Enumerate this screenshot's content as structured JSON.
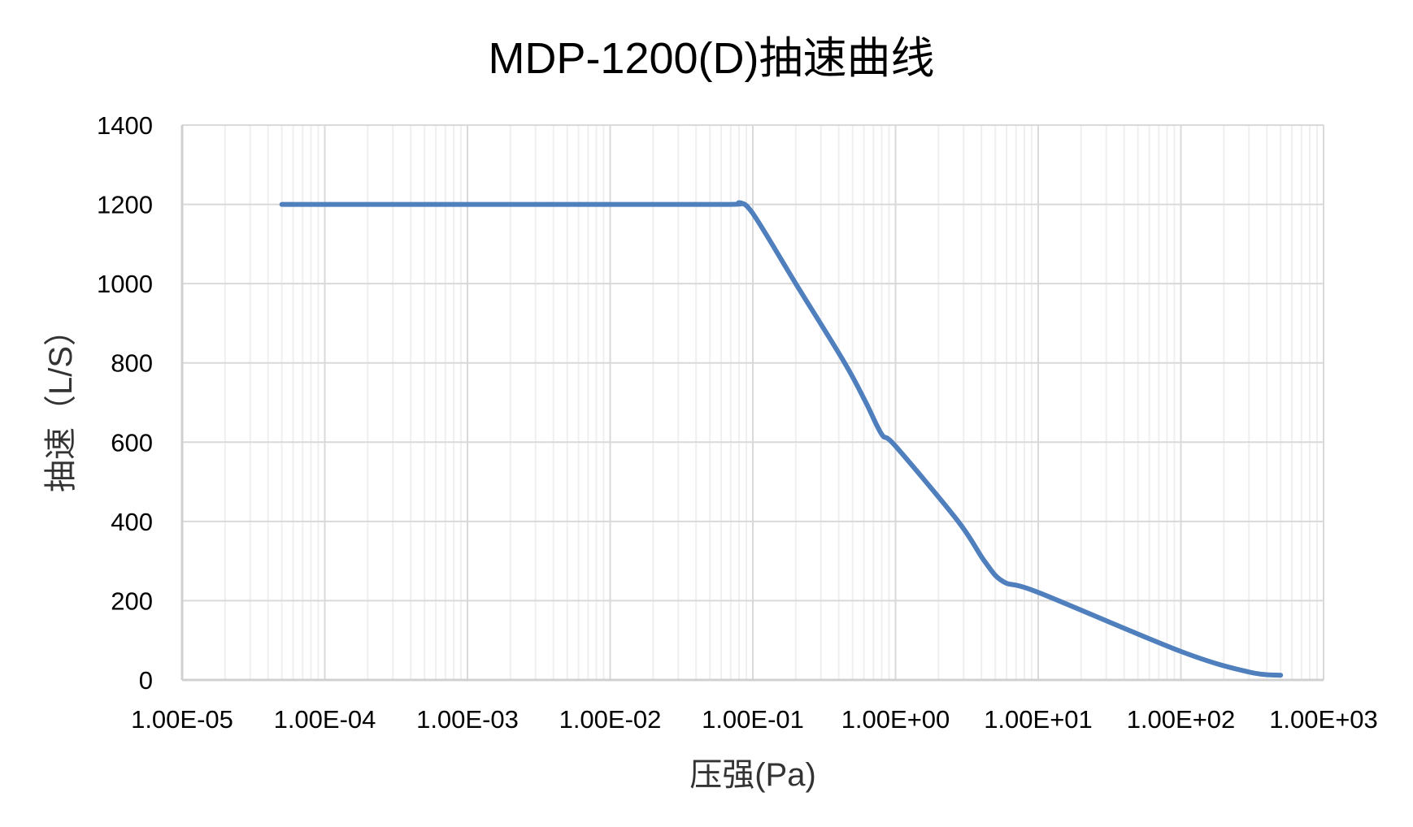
{
  "chart_data": {
    "type": "line",
    "title": "MDP-1200(D)抽速曲线",
    "xlabel": "压强(Pa)",
    "ylabel": "抽速（L/S）",
    "xscale": "log",
    "xlim": [
      1e-05,
      1000
    ],
    "ylim": [
      0,
      1400
    ],
    "x_tick_labels": [
      "1.00E-05",
      "1.00E-04",
      "1.00E-03",
      "1.00E-02",
      "1.00E-01",
      "1.00E+00",
      "1.00E+01",
      "1.00E+02",
      "1.00E+03"
    ],
    "y_tick_labels": [
      "0",
      "200",
      "400",
      "600",
      "800",
      "1000",
      "1200",
      "1400"
    ],
    "y_ticks": [
      0,
      200,
      400,
      600,
      800,
      1000,
      1200,
      1400
    ],
    "grid": {
      "major": true,
      "minor_x": true
    },
    "legend": null,
    "series": [
      {
        "name": "抽速",
        "color": "#4F7FBD",
        "x": [
          5e-05,
          0.0001,
          0.001,
          0.01,
          0.07,
          0.08,
          0.1,
          0.2,
          0.44,
          0.62,
          0.8,
          1,
          2.75,
          4.2,
          5.7,
          10,
          100,
          300,
          500
        ],
        "y": [
          1200,
          1200,
          1200,
          1200,
          1200,
          1203,
          1177,
          1000,
          800,
          700,
          620,
          590,
          400,
          300,
          248,
          221,
          72,
          20,
          12
        ]
      }
    ]
  },
  "colors": {
    "line": "#4F7FBD",
    "grid_major": "#D9D9D9",
    "grid_minor": "#EFEFEF",
    "axis": "#D0D0D0"
  }
}
